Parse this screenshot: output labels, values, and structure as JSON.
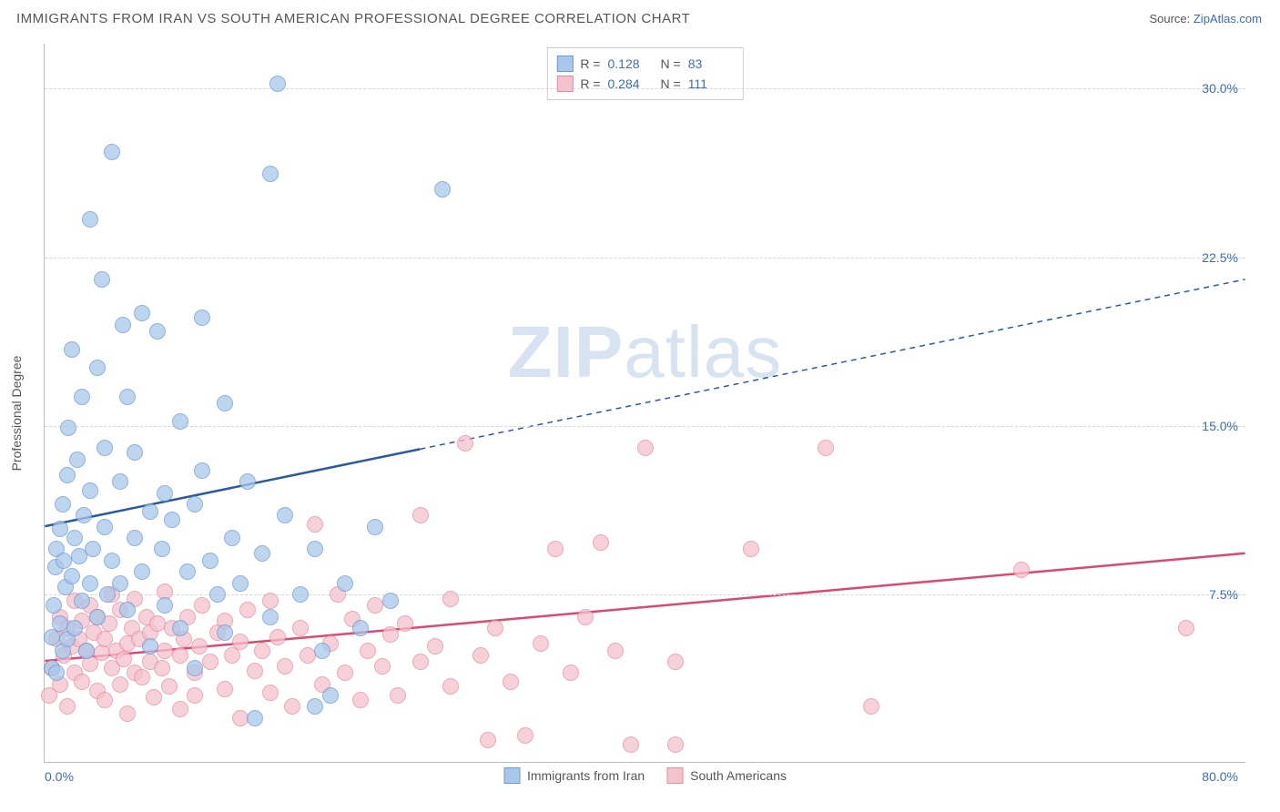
{
  "header": {
    "title": "IMMIGRANTS FROM IRAN VS SOUTH AMERICAN PROFESSIONAL DEGREE CORRELATION CHART",
    "source_prefix": "Source: ",
    "source_link": "ZipAtlas.com"
  },
  "chart": {
    "type": "scatter",
    "ylabel": "Professional Degree",
    "watermark": "ZIPatlas",
    "xlim": [
      0,
      80
    ],
    "ylim": [
      0,
      32
    ],
    "xticks": {
      "min": "0.0%",
      "max": "80.0%"
    },
    "yticks": [
      {
        "v": 7.5,
        "label": "7.5%"
      },
      {
        "v": 15.0,
        "label": "15.0%"
      },
      {
        "v": 22.5,
        "label": "22.5%"
      },
      {
        "v": 30.0,
        "label": "30.0%"
      }
    ],
    "grid_color": "#d5d5d5",
    "background_color": "#ffffff",
    "series": {
      "iran": {
        "label": "Immigrants from Iran",
        "fill": "#a9c7ea",
        "stroke": "#6a9ad2",
        "line_color": "#2a5aa0",
        "r_label": "R =",
        "r_value": "0.128",
        "n_label": "N =",
        "n_value": "83",
        "trend": {
          "x1": 0,
          "y1": 10.5,
          "x2": 80,
          "y2": 21.5,
          "solid_until_x": 25
        },
        "marker_radius": 9,
        "points": [
          [
            0.5,
            4.2
          ],
          [
            0.5,
            5.6
          ],
          [
            0.6,
            7.0
          ],
          [
            0.7,
            8.7
          ],
          [
            0.8,
            9.5
          ],
          [
            0.8,
            4.0
          ],
          [
            1.0,
            10.4
          ],
          [
            1.0,
            6.2
          ],
          [
            1.2,
            5.0
          ],
          [
            1.2,
            11.5
          ],
          [
            1.3,
            9.0
          ],
          [
            1.4,
            7.8
          ],
          [
            1.5,
            12.8
          ],
          [
            1.5,
            5.5
          ],
          [
            1.6,
            14.9
          ],
          [
            1.8,
            18.4
          ],
          [
            1.8,
            8.3
          ],
          [
            2.0,
            6.0
          ],
          [
            2.0,
            10.0
          ],
          [
            2.2,
            13.5
          ],
          [
            2.3,
            9.2
          ],
          [
            2.5,
            16.3
          ],
          [
            2.5,
            7.2
          ],
          [
            2.6,
            11.0
          ],
          [
            2.8,
            5.0
          ],
          [
            3.0,
            8.0
          ],
          [
            3.0,
            12.1
          ],
          [
            3.0,
            24.2
          ],
          [
            3.2,
            9.5
          ],
          [
            3.5,
            17.6
          ],
          [
            3.5,
            6.5
          ],
          [
            3.8,
            21.5
          ],
          [
            4.0,
            10.5
          ],
          [
            4.0,
            14.0
          ],
          [
            4.2,
            7.5
          ],
          [
            4.5,
            27.2
          ],
          [
            4.5,
            9.0
          ],
          [
            5.0,
            8.0
          ],
          [
            5.0,
            12.5
          ],
          [
            5.2,
            19.5
          ],
          [
            5.5,
            16.3
          ],
          [
            5.5,
            6.8
          ],
          [
            6.0,
            10.0
          ],
          [
            6.0,
            13.8
          ],
          [
            6.5,
            20.0
          ],
          [
            6.5,
            8.5
          ],
          [
            7.0,
            11.2
          ],
          [
            7.0,
            5.2
          ],
          [
            7.5,
            19.2
          ],
          [
            7.8,
            9.5
          ],
          [
            8.0,
            12.0
          ],
          [
            8.0,
            7.0
          ],
          [
            8.5,
            10.8
          ],
          [
            9.0,
            15.2
          ],
          [
            9.0,
            6.0
          ],
          [
            9.5,
            8.5
          ],
          [
            10.0,
            11.5
          ],
          [
            10.0,
            4.2
          ],
          [
            10.5,
            13.0
          ],
          [
            11.0,
            9.0
          ],
          [
            11.5,
            7.5
          ],
          [
            12.0,
            16.0
          ],
          [
            12.0,
            5.8
          ],
          [
            12.5,
            10.0
          ],
          [
            13.0,
            8.0
          ],
          [
            13.5,
            12.5
          ],
          [
            14.0,
            2.0
          ],
          [
            14.5,
            9.3
          ],
          [
            15.0,
            26.2
          ],
          [
            15.0,
            6.5
          ],
          [
            15.5,
            30.2
          ],
          [
            16.0,
            11.0
          ],
          [
            17.0,
            7.5
          ],
          [
            18.0,
            9.5
          ],
          [
            18.5,
            5.0
          ],
          [
            19.0,
            3.0
          ],
          [
            20.0,
            8.0
          ],
          [
            21.0,
            6.0
          ],
          [
            22.0,
            10.5
          ],
          [
            23.0,
            7.2
          ],
          [
            18.0,
            2.5
          ],
          [
            26.5,
            25.5
          ],
          [
            10.5,
            19.8
          ]
        ]
      },
      "sa": {
        "label": "South Americans",
        "fill": "#f4c2cd",
        "stroke": "#e98ba0",
        "line_color": "#d94a72",
        "r_label": "R =",
        "r_value": "0.284",
        "n_label": "N =",
        "n_value": "111",
        "trend": {
          "x1": 0,
          "y1": 4.5,
          "x2": 80,
          "y2": 9.3,
          "solid_until_x": 80
        },
        "marker_radius": 9,
        "points": [
          [
            0.3,
            3.0
          ],
          [
            0.5,
            4.2
          ],
          [
            0.8,
            5.5
          ],
          [
            1.0,
            3.5
          ],
          [
            1.0,
            6.5
          ],
          [
            1.3,
            4.8
          ],
          [
            1.5,
            6.0
          ],
          [
            1.5,
            2.5
          ],
          [
            1.8,
            5.2
          ],
          [
            2.0,
            4.0
          ],
          [
            2.0,
            7.2
          ],
          [
            2.3,
            5.5
          ],
          [
            2.5,
            3.6
          ],
          [
            2.5,
            6.3
          ],
          [
            2.8,
            5.0
          ],
          [
            3.0,
            4.4
          ],
          [
            3.0,
            7.0
          ],
          [
            3.3,
            5.8
          ],
          [
            3.5,
            3.2
          ],
          [
            3.5,
            6.5
          ],
          [
            3.8,
            4.9
          ],
          [
            4.0,
            5.5
          ],
          [
            4.0,
            2.8
          ],
          [
            4.3,
            6.2
          ],
          [
            4.5,
            4.2
          ],
          [
            4.5,
            7.5
          ],
          [
            4.8,
            5.0
          ],
          [
            5.0,
            3.5
          ],
          [
            5.0,
            6.8
          ],
          [
            5.3,
            4.6
          ],
          [
            5.5,
            5.3
          ],
          [
            5.5,
            2.2
          ],
          [
            5.8,
            6.0
          ],
          [
            6.0,
            4.0
          ],
          [
            6.0,
            7.3
          ],
          [
            6.3,
            5.5
          ],
          [
            6.5,
            3.8
          ],
          [
            6.8,
            6.5
          ],
          [
            7.0,
            4.5
          ],
          [
            7.0,
            5.8
          ],
          [
            7.3,
            2.9
          ],
          [
            7.5,
            6.2
          ],
          [
            7.8,
            4.2
          ],
          [
            8.0,
            5.0
          ],
          [
            8.0,
            7.6
          ],
          [
            8.3,
            3.4
          ],
          [
            8.5,
            6.0
          ],
          [
            9.0,
            4.8
          ],
          [
            9.0,
            2.4
          ],
          [
            9.3,
            5.5
          ],
          [
            9.5,
            6.5
          ],
          [
            10.0,
            4.0
          ],
          [
            10.0,
            3.0
          ],
          [
            10.3,
            5.2
          ],
          [
            10.5,
            7.0
          ],
          [
            11.0,
            4.5
          ],
          [
            11.5,
            5.8
          ],
          [
            12.0,
            3.3
          ],
          [
            12.0,
            6.3
          ],
          [
            12.5,
            4.8
          ],
          [
            13.0,
            2.0
          ],
          [
            13.0,
            5.4
          ],
          [
            13.5,
            6.8
          ],
          [
            14.0,
            4.1
          ],
          [
            14.5,
            5.0
          ],
          [
            15.0,
            3.1
          ],
          [
            15.0,
            7.2
          ],
          [
            15.5,
            5.6
          ],
          [
            16.0,
            4.3
          ],
          [
            16.5,
            2.5
          ],
          [
            17.0,
            6.0
          ],
          [
            17.5,
            4.8
          ],
          [
            18.0,
            10.6
          ],
          [
            18.5,
            3.5
          ],
          [
            19.0,
            5.3
          ],
          [
            19.5,
            7.5
          ],
          [
            20.0,
            4.0
          ],
          [
            20.5,
            6.4
          ],
          [
            21.0,
            2.8
          ],
          [
            21.5,
            5.0
          ],
          [
            22.0,
            7.0
          ],
          [
            22.5,
            4.3
          ],
          [
            23.0,
            5.7
          ],
          [
            23.5,
            3.0
          ],
          [
            24.0,
            6.2
          ],
          [
            25.0,
            4.5
          ],
          [
            25.0,
            11.0
          ],
          [
            26.0,
            5.2
          ],
          [
            27.0,
            3.4
          ],
          [
            27.0,
            7.3
          ],
          [
            28.0,
            14.2
          ],
          [
            29.0,
            4.8
          ],
          [
            29.5,
            1.0
          ],
          [
            30.0,
            6.0
          ],
          [
            31.0,
            3.6
          ],
          [
            32.0,
            1.2
          ],
          [
            33.0,
            5.3
          ],
          [
            34.0,
            9.5
          ],
          [
            35.0,
            4.0
          ],
          [
            36.0,
            6.5
          ],
          [
            37.0,
            9.8
          ],
          [
            38.0,
            5.0
          ],
          [
            39.0,
            0.8
          ],
          [
            40.0,
            14.0
          ],
          [
            42.0,
            4.5
          ],
          [
            42.0,
            0.8
          ],
          [
            47.0,
            9.5
          ],
          [
            52.0,
            14.0
          ],
          [
            55.0,
            2.5
          ],
          [
            65.0,
            8.6
          ],
          [
            76.0,
            6.0
          ]
        ]
      }
    }
  }
}
